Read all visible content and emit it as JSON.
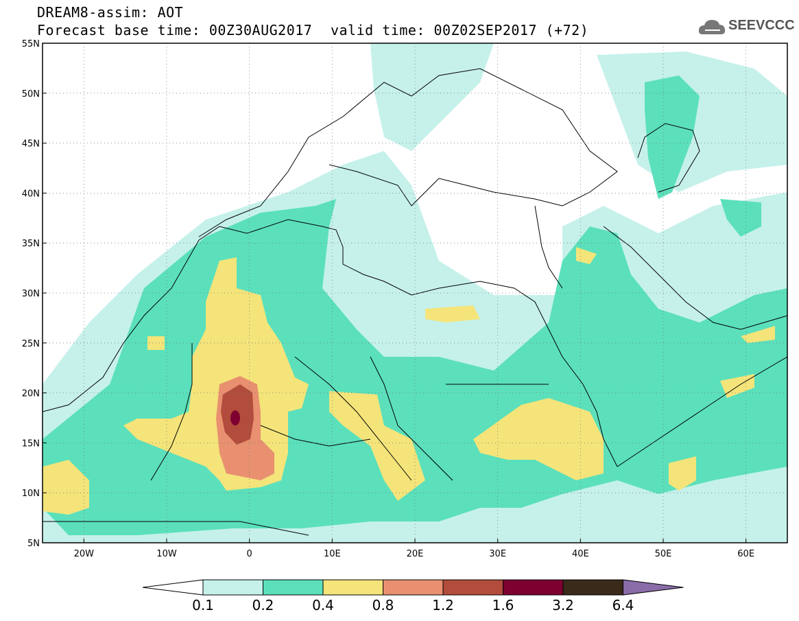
{
  "header": {
    "line1": "DREAM8-assim: AOT",
    "line2": "Forecast base time: 00Z30AUG2017",
    "valid": "valid time: 00Z02SEP2017 (+72)"
  },
  "logo": {
    "text": "SEEVCCC",
    "icon": "cloud-logo-icon"
  },
  "map": {
    "lat_ticks": [
      "55N",
      "50N",
      "45N",
      "40N",
      "35N",
      "30N",
      "25N",
      "20N",
      "15N",
      "10N",
      "5N"
    ],
    "lon_ticks": [
      "20W",
      "10W",
      "0",
      "10E",
      "20E",
      "30E",
      "40E",
      "50E",
      "60E"
    ],
    "lat_range": [
      5,
      55
    ],
    "lon_range": [
      -25,
      65
    ]
  },
  "legend": {
    "labels": [
      "0.1",
      "0.2",
      "0.4",
      "0.8",
      "1.2",
      "1.6",
      "3.2",
      "6.4"
    ],
    "colors": [
      "#ffffff",
      "#c6f1eb",
      "#5be0bb",
      "#f4e47a",
      "#e89070",
      "#b24c3c",
      "#7d0030",
      "#3a2a1a",
      "#8a6ca8"
    ]
  },
  "colors": {
    "level1": "#c6f1eb",
    "level2": "#5be0bb",
    "level3": "#f4e47a",
    "level4": "#e89070",
    "level5": "#b24c3c",
    "level6": "#7d0030"
  }
}
